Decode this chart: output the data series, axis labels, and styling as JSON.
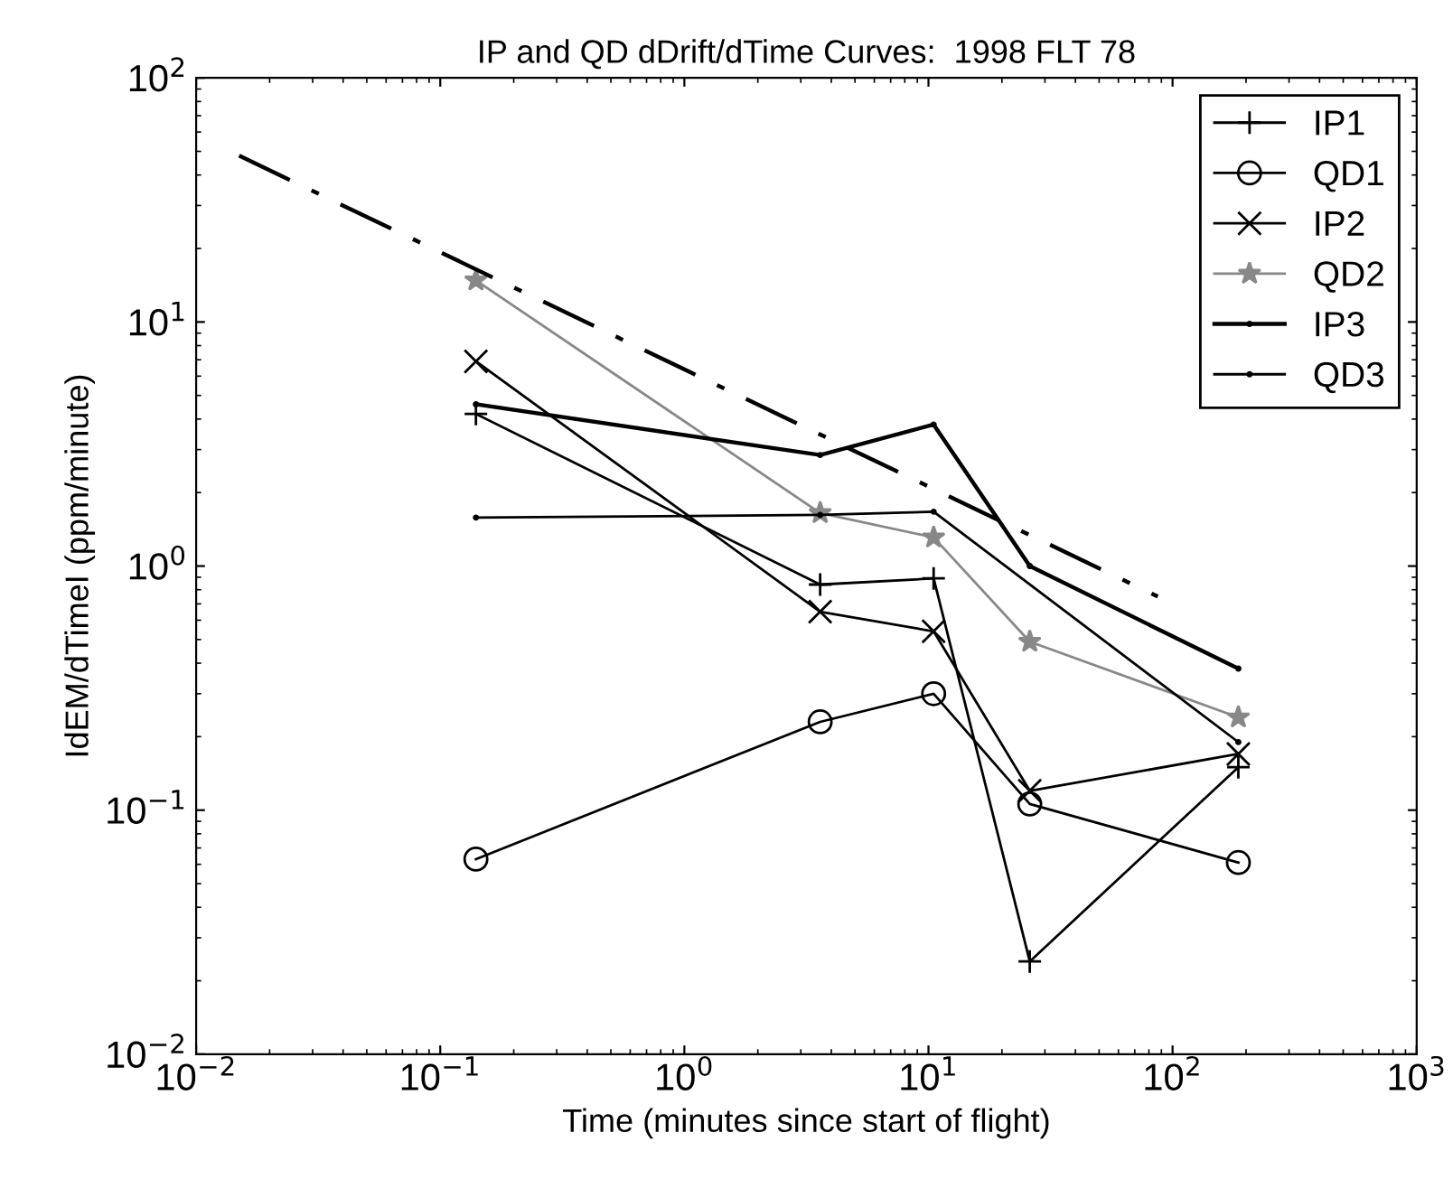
{
  "chart_data": {
    "type": "line",
    "title": "IP and QD dDrift/dTime Curves:  1998 FLT 78",
    "xlabel": "Time (minutes since start of flight)",
    "ylabel": "IdEM/dTimeI (ppm/minute)",
    "log": "xy",
    "xlim": [
      0.01,
      1000
    ],
    "ylim": [
      0.01,
      100
    ],
    "xticks": [
      {
        "value": 0.01,
        "label": "10$^{−2}$"
      },
      {
        "value": 0.1,
        "label": "10$^{−1}$"
      },
      {
        "value": 1,
        "label": "10$^{0}$"
      },
      {
        "value": 10,
        "label": "10$^{1}$"
      },
      {
        "value": 100,
        "label": "10$^{2}$"
      },
      {
        "value": 1000,
        "label": "10$^{3}$"
      }
    ],
    "yticks": [
      {
        "value": 0.01,
        "label": "10$^{−2}$"
      },
      {
        "value": 0.1,
        "label": "10$^{−1}$"
      },
      {
        "value": 1,
        "label": "10$^{0}$"
      },
      {
        "value": 10,
        "label": "10$^{1}$"
      },
      {
        "value": 100,
        "label": "10$^{2}$"
      }
    ],
    "grid": false,
    "legend": "top right",
    "series": [
      {
        "name": "IP1",
        "color": "#000000",
        "marker": "plus",
        "line_style": "solid",
        "x": [
          0.14,
          3.6,
          10.5,
          26,
          186
        ],
        "values": [
          4.2,
          0.84,
          0.89,
          0.024,
          0.15
        ]
      },
      {
        "name": "QD1",
        "color": "#000000",
        "marker": "circle",
        "line_style": "solid",
        "x": [
          0.14,
          3.6,
          10.5,
          26,
          186
        ],
        "values": [
          0.063,
          0.23,
          0.3,
          0.106,
          0.061
        ]
      },
      {
        "name": "IP2",
        "color": "#000000",
        "marker": "cross",
        "line_style": "solid",
        "x": [
          0.14,
          3.6,
          10.5,
          26,
          186
        ],
        "values": [
          6.9,
          0.65,
          0.54,
          0.12,
          0.17
        ]
      },
      {
        "name": "QD2",
        "color": "#888888",
        "marker": "star",
        "line_style": "solid",
        "x": [
          0.14,
          3.6,
          10.5,
          26,
          186
        ],
        "values": [
          14.8,
          1.65,
          1.31,
          0.49,
          0.24
        ]
      },
      {
        "name": "IP3",
        "color": "#000000",
        "marker": "point",
        "line_style": "solid",
        "x": [
          0.14,
          3.6,
          10.5,
          26,
          186
        ],
        "values": [
          4.6,
          2.85,
          3.8,
          1.0,
          0.38
        ]
      },
      {
        "name": "QD3",
        "color": "#000000",
        "marker": "point",
        "line_style": "solid",
        "x": [
          0.14,
          3.6,
          10.5,
          186
        ],
        "values": [
          1.58,
          1.62,
          1.67,
          0.19
        ]
      },
      {
        "color": "#000000",
        "marker": "none",
        "line_style": "dashdot",
        "x": [
          0.015,
          87
        ],
        "values": [
          48,
          0.75
        ]
      }
    ]
  }
}
